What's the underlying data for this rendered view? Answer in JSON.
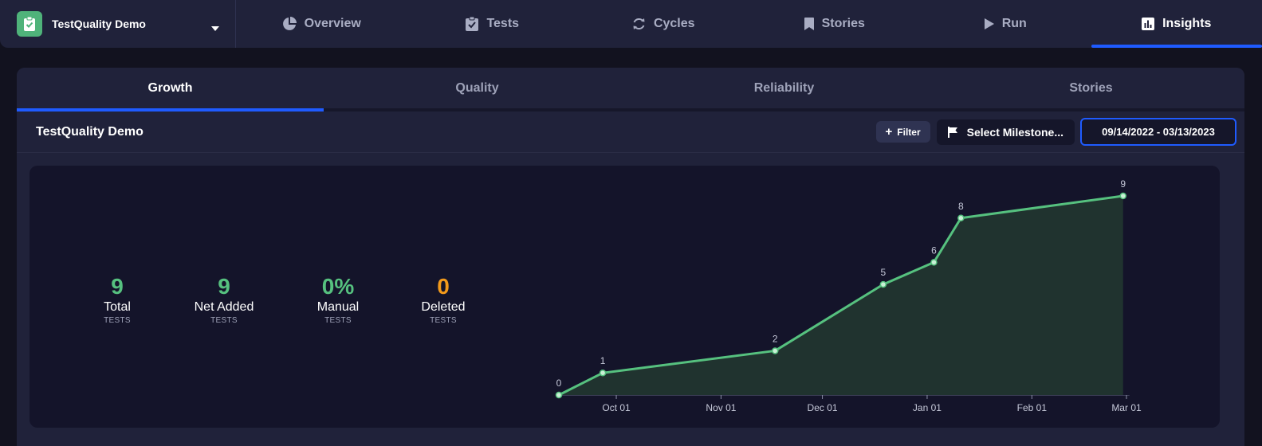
{
  "project": {
    "name": "TestQuality Demo"
  },
  "nav": {
    "tabs": [
      {
        "label": "Overview"
      },
      {
        "label": "Tests"
      },
      {
        "label": "Cycles"
      },
      {
        "label": "Stories"
      },
      {
        "label": "Run"
      },
      {
        "label": "Insights"
      }
    ],
    "active": "Insights"
  },
  "subtabs": [
    {
      "label": "Growth"
    },
    {
      "label": "Quality"
    },
    {
      "label": "Reliability"
    },
    {
      "label": "Stories"
    }
  ],
  "toolbar": {
    "title": "TestQuality Demo",
    "filter_label": "Filter",
    "milestone_label": "Select Milestone...",
    "date_range": "09/14/2022  -  03/13/2023"
  },
  "stats": [
    {
      "value": "9",
      "label": "Total",
      "unit": "TESTS",
      "color": "#56c17f"
    },
    {
      "value": "9",
      "label": "Net Added",
      "unit": "TESTS",
      "color": "#56c17f"
    },
    {
      "value": "0%",
      "label": "Manual",
      "unit": "TESTS",
      "color": "#56c17f"
    },
    {
      "value": "0",
      "label": "Deleted",
      "unit": "TESTS",
      "color": "#f39a1b"
    }
  ],
  "chart_data": {
    "type": "area",
    "title": "",
    "xlabel": "",
    "ylabel": "",
    "x_ticks": [
      "Oct 01",
      "Nov 01",
      "Dec 01",
      "Jan 01",
      "Feb 01",
      "Mar 01"
    ],
    "x_range": [
      "2022-09-14",
      "2023-03-01"
    ],
    "grid": false,
    "series": [
      {
        "color": "#56c17f",
        "points": [
          {
            "x": "2022-09-14",
            "y": 0
          },
          {
            "x": "2022-09-27",
            "y": 1
          },
          {
            "x": "2022-11-17",
            "y": 2
          },
          {
            "x": "2022-12-19",
            "y": 5
          },
          {
            "x": "2023-01-03",
            "y": 6
          },
          {
            "x": "2023-01-11",
            "y": 8
          },
          {
            "x": "2023-02-28",
            "y": 9
          }
        ]
      }
    ]
  }
}
